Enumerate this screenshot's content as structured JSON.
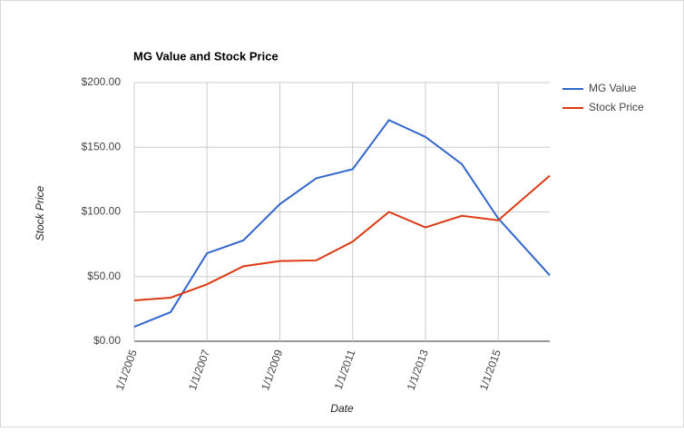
{
  "chart_data": {
    "type": "line",
    "title": "MG Value and Stock Price",
    "x_label": "Date",
    "y_label": "Stock Price",
    "x": [
      "2005-01-01",
      "2006-01-01",
      "2007-01-01",
      "2008-01-01",
      "2009-01-01",
      "2010-01-01",
      "2011-01-01",
      "2012-01-01",
      "2013-01-01",
      "2014-01-01",
      "2015-01-01",
      "2016-06-01"
    ],
    "series": [
      {
        "name": "MG Value",
        "color": "#3366cc",
        "values": [
          11.2,
          22.5,
          68,
          78,
          106,
          126,
          133,
          171,
          158,
          137,
          95,
          51
        ]
      },
      {
        "name": "Stock Price",
        "color": "#dc3912",
        "values": [
          31.6,
          33.7,
          44,
          58,
          62,
          62.5,
          77,
          100,
          88,
          97,
          93.5,
          128
        ]
      }
    ],
    "xlim": [
      "2005-01-01",
      "2016-06-01"
    ],
    "xticks": [
      {
        "value": "2005-01-01",
        "label": "1/1/2005"
      },
      {
        "value": "2007-01-01",
        "label": "1/1/2007"
      },
      {
        "value": "2009-01-01",
        "label": "1/1/2009"
      },
      {
        "value": "2011-01-01",
        "label": "1/1/2011"
      },
      {
        "value": "2013-01-01",
        "label": "1/1/2013"
      },
      {
        "value": "2015-01-01",
        "label": "1/1/2015"
      }
    ],
    "ylim": [
      0,
      200
    ],
    "yticks": [
      {
        "value": 0,
        "label": "$0.00"
      },
      {
        "value": 50,
        "label": "$50.00"
      },
      {
        "value": 100,
        "label": "$100.00"
      },
      {
        "value": 150,
        "label": "$150.00"
      },
      {
        "value": 200,
        "label": "$200.00"
      }
    ],
    "grid": true,
    "legend": "right"
  }
}
